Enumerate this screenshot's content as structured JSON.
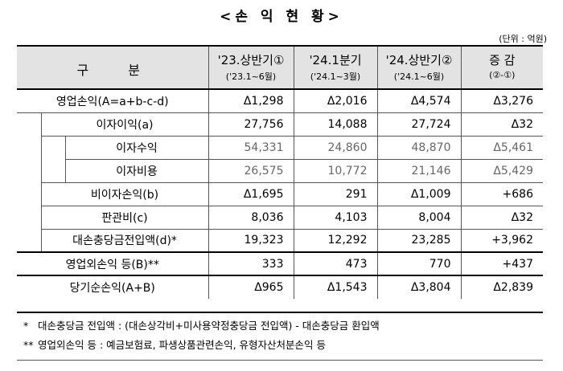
{
  "title": "<손 익 현 황>",
  "unit": "(단위 : 억원)",
  "header": {
    "gubun": "구  분",
    "cols": [
      {
        "label": "'23.상반기①",
        "period": "('23.1~6월)"
      },
      {
        "label": "'24.1분기",
        "period": "('24.1~3월)"
      },
      {
        "label": "'24.상반기②",
        "period": "('24.1~6월)"
      },
      {
        "label": "증 감",
        "period": "(②-①)"
      }
    ]
  },
  "rows": [
    {
      "label": "영업손익(A=a+b-c-d)",
      "values": [
        "Δ1,298",
        "Δ2,016",
        "Δ4,574",
        "Δ3,276"
      ]
    },
    {
      "label": "이자이익(a)",
      "values": [
        "27,756",
        "14,088",
        "27,724",
        "Δ32"
      ]
    },
    {
      "label": "이자수익",
      "values": [
        "54,331",
        "24,860",
        "48,870",
        "Δ5,461"
      ]
    },
    {
      "label": "이자비용",
      "values": [
        "26,575",
        "10,772",
        "21,146",
        "Δ5,429"
      ]
    },
    {
      "label": "비이자손익(b)",
      "values": [
        "Δ1,695",
        "291",
        "Δ1,009",
        "+686"
      ]
    },
    {
      "label": "판관비(c)",
      "values": [
        "8,036",
        "4,103",
        "8,004",
        "Δ32"
      ]
    },
    {
      "label": "대손충당금전입액(d)*",
      "values": [
        "19,323",
        "12,292",
        "23,285",
        "+3,962"
      ]
    },
    {
      "label": "영업외손익 등(B)**",
      "values": [
        "333",
        "473",
        "770",
        "+437"
      ]
    },
    {
      "label": "당기순손익(A+B)",
      "values": [
        "Δ965",
        "Δ1,543",
        "Δ3,804",
        "Δ2,839"
      ]
    }
  ],
  "notes": [
    {
      "mark": "*",
      "text": "대손충당금 전입액 : (대손상각비+미사용약정충당금 전입액) - 대손충당금 환입액"
    },
    {
      "mark": "**",
      "text": "영업외손익 등 : 예금보험료, 파생상품관련손익, 유형자산처분손익 등"
    }
  ]
}
